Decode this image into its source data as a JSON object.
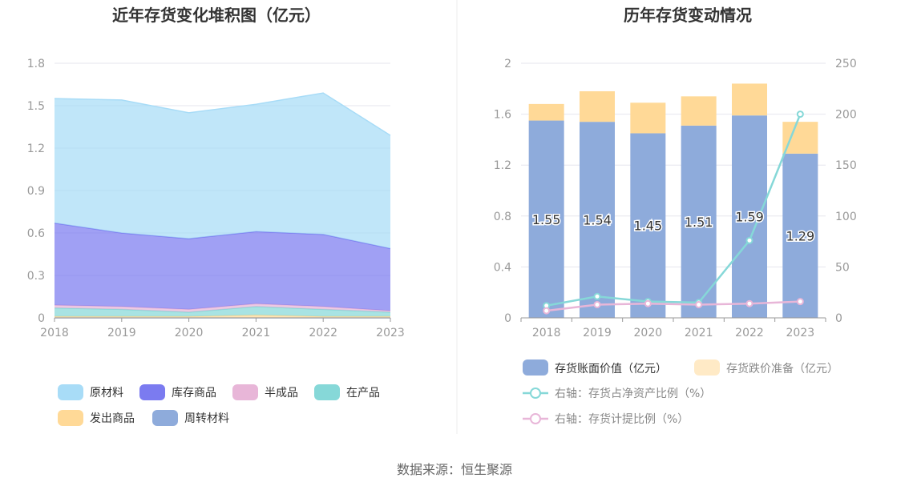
{
  "source": "数据来源：恒生聚源",
  "chart_data": [
    {
      "type": "area",
      "title": "近年存货变化堆积图（亿元）",
      "x": [
        "2018",
        "2019",
        "2020",
        "2021",
        "2022",
        "2023"
      ],
      "ylim": [
        0,
        1.8
      ],
      "yticks": [
        "0",
        "0.3",
        "0.6",
        "0.9",
        "1.2",
        "1.5",
        "1.8"
      ],
      "stacked": true,
      "legend_position": "bottom",
      "series": [
        {
          "name": "周转材料",
          "color": "#8eabdb",
          "values": [
            0.0,
            0.0,
            0.0,
            0.0,
            0.0,
            0.0
          ]
        },
        {
          "name": "发出商品",
          "color": "#ffd997",
          "values": [
            0.01,
            0.01,
            0.01,
            0.02,
            0.01,
            0.01
          ]
        },
        {
          "name": "在产品",
          "color": "#86d8d8",
          "values": [
            0.06,
            0.05,
            0.03,
            0.06,
            0.05,
            0.03
          ]
        },
        {
          "name": "半成品",
          "color": "#e8b6d8",
          "values": [
            0.02,
            0.02,
            0.02,
            0.02,
            0.02,
            0.01
          ]
        },
        {
          "name": "库存商品",
          "color": "#7b7bf0",
          "values": [
            0.58,
            0.52,
            0.5,
            0.51,
            0.51,
            0.44
          ]
        },
        {
          "name": "原材料",
          "color": "#a8dcf7",
          "values": [
            0.88,
            0.94,
            0.89,
            0.9,
            1.0,
            0.8
          ]
        }
      ]
    },
    {
      "type": "bar",
      "title": "历年存货变动情况",
      "x": [
        "2018",
        "2019",
        "2020",
        "2021",
        "2022",
        "2023"
      ],
      "ylim": [
        0,
        2
      ],
      "yticks": [
        "0",
        "0.4",
        "0.8",
        "1.2",
        "1.6",
        "2"
      ],
      "y2lim": [
        0,
        250
      ],
      "y2ticks": [
        "0",
        "50",
        "100",
        "150",
        "200",
        "250"
      ],
      "stacked": true,
      "legend_position": "bottom",
      "series": [
        {
          "name": "存货账面价值（亿元）",
          "type": "bar",
          "color": "#8eabdb",
          "values": [
            1.55,
            1.54,
            1.45,
            1.51,
            1.59,
            1.29
          ],
          "labels": [
            "1.55",
            "1.54",
            "1.45",
            "1.51",
            "1.59",
            "1.29"
          ]
        },
        {
          "name": "存货跌价准备（亿元）",
          "type": "bar",
          "color": "#ffd997",
          "values": [
            0.13,
            0.24,
            0.24,
            0.23,
            0.25,
            0.25
          ]
        },
        {
          "name": "右轴：存货占净资产比例（%）",
          "type": "line",
          "axis": "right",
          "color": "#86d8d8",
          "values": [
            12,
            21,
            16,
            15,
            76,
            200
          ]
        },
        {
          "name": "右轴：存货计提比例（%）",
          "type": "line",
          "axis": "right",
          "color": "#e8b6d8",
          "values": [
            7,
            13,
            14,
            13,
            14,
            16
          ]
        }
      ]
    }
  ]
}
